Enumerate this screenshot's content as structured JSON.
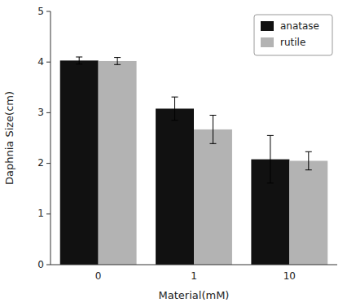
{
  "chart_data": {
    "type": "bar",
    "categories": [
      "0",
      "1",
      "10"
    ],
    "series": [
      {
        "name": "anatase",
        "color": "#111111",
        "values": [
          4.03,
          3.08,
          2.08
        ],
        "errors": [
          0.07,
          0.23,
          0.47
        ]
      },
      {
        "name": "rutile",
        "color": "#b3b3b3",
        "values": [
          4.02,
          2.67,
          2.05
        ],
        "errors": [
          0.07,
          0.28,
          0.18
        ]
      }
    ],
    "xlabel": "Material(mM)",
    "ylabel": "Daphnia Size(cm)",
    "ylim": [
      0,
      5
    ],
    "yticks": [
      0,
      1,
      2,
      3,
      4,
      5
    ],
    "legend": "upper right",
    "grid": false
  }
}
